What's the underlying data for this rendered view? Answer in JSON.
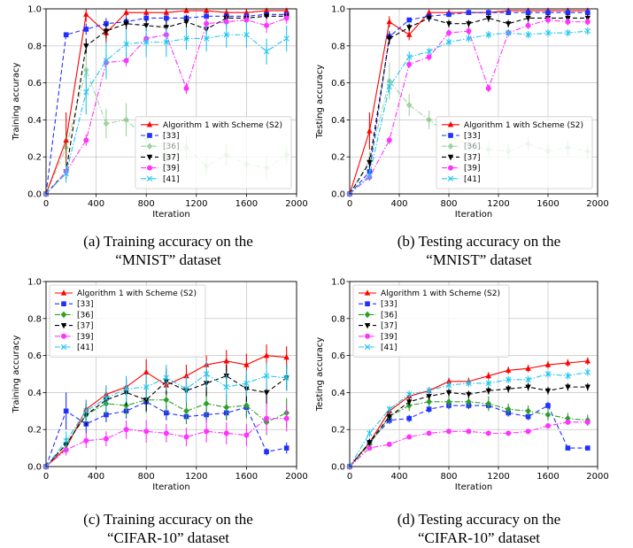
{
  "colors": {
    "alg1": "#ff0000",
    "r33": "#2030ff",
    "r36": "#2ca02c",
    "r37": "#000000",
    "r39": "#ff33ff",
    "r41": "#22c6ee"
  },
  "captions": [
    {
      "line1": "(a) Training accuracy on the",
      "line2": "“MNIST” dataset"
    },
    {
      "line1": "(b) Testing accuracy on the",
      "line2": "“MNIST” dataset"
    },
    {
      "line1": "(c) Training accuracy on the",
      "line2": "“CIFAR-10” dataset"
    },
    {
      "line1": "(d) Testing accuracy on the",
      "line2": "“CIFAR-10” dataset"
    }
  ],
  "chart_data": [
    {
      "type": "line",
      "title": "",
      "xlabel": "Iteration",
      "ylabel": "Training accuracy",
      "xlim": [
        0,
        2000
      ],
      "ylim": [
        0,
        1.0
      ],
      "xticks": [
        "0",
        "400",
        "800",
        "1200",
        "1600",
        "2000"
      ],
      "yticks": [
        "0.0",
        "0.2",
        "0.4",
        "0.6",
        "0.8",
        "1.0"
      ],
      "grid": true,
      "legend": "lower-right",
      "x": [
        0,
        160,
        320,
        480,
        640,
        800,
        960,
        1120,
        1280,
        1440,
        1600,
        1760,
        1920
      ],
      "series": [
        {
          "name": "Algorithm 1 with Scheme (S2)",
          "marker": "triangle-up",
          "dash": "solid",
          "values": [
            0,
            0.29,
            0.97,
            0.87,
            0.98,
            0.98,
            0.98,
            0.99,
            0.99,
            0.98,
            0.98,
            0.99,
            0.99
          ],
          "errors": [
            0,
            0.15,
            0.04,
            0.06,
            0.02,
            0.02,
            0.02,
            0.01,
            0.01,
            0.02,
            0.02,
            0.01,
            0.01
          ]
        },
        {
          "name": "[33]",
          "marker": "square",
          "dash": "dash",
          "values": [
            0,
            0.86,
            0.89,
            0.92,
            0.93,
            0.95,
            0.95,
            0.95,
            0.96,
            0.96,
            0.96,
            0.97,
            0.97
          ],
          "errors": [
            0,
            0.01,
            0.03,
            0.03,
            0.03,
            0.02,
            0.02,
            0.02,
            0.02,
            0.02,
            0.02,
            0.01,
            0.01
          ]
        },
        {
          "name": "[36]",
          "marker": "diamond",
          "dash": "dashdot",
          "faded": true,
          "values": [
            0,
            0.25,
            0.67,
            0.38,
            0.4,
            0.3,
            0.2,
            0.25,
            0.15,
            0.21,
            0.16,
            0.14,
            0.21
          ],
          "errors": [
            0,
            0.1,
            0.15,
            0.08,
            0.09,
            0.07,
            0.06,
            0.07,
            0.05,
            0.06,
            0.05,
            0.06,
            0.05
          ]
        },
        {
          "name": "[37]",
          "marker": "triangle-down",
          "dash": "dash",
          "values": [
            0,
            0.12,
            0.8,
            0.88,
            0.92,
            0.91,
            0.9,
            0.93,
            0.89,
            0.95,
            0.95,
            0.96,
            0.96
          ],
          "errors": [
            0,
            0.04,
            0.04,
            0.04,
            0.03,
            0.03,
            0.04,
            0.03,
            0.03,
            0.02,
            0.02,
            0.02,
            0.02
          ]
        },
        {
          "name": "[39]",
          "marker": "circle",
          "dash": "dashdot",
          "values": [
            0,
            0.12,
            0.29,
            0.71,
            0.72,
            0.84,
            0.86,
            0.57,
            0.92,
            0.93,
            0.94,
            0.91,
            0.95
          ],
          "errors": [
            0,
            0.03,
            0.03,
            0.04,
            0.03,
            0.03,
            0.04,
            0.03,
            0.03,
            0.03,
            0.03,
            0.04,
            0.03
          ]
        },
        {
          "name": "[41]",
          "marker": "x",
          "dash": "dashdot",
          "values": [
            0,
            0.11,
            0.55,
            0.72,
            0.81,
            0.82,
            0.82,
            0.84,
            0.84,
            0.86,
            0.86,
            0.77,
            0.84
          ],
          "errors": [
            0,
            0.05,
            0.12,
            0.1,
            0.08,
            0.08,
            0.08,
            0.06,
            0.07,
            0.07,
            0.07,
            0.07,
            0.07
          ]
        }
      ]
    },
    {
      "type": "line",
      "title": "",
      "xlabel": "Iteration",
      "ylabel": "Testing accuracy",
      "xlim": [
        0,
        2000
      ],
      "ylim": [
        0,
        1.0
      ],
      "xticks": [
        "0",
        "400",
        "800",
        "1200",
        "1600",
        "2000"
      ],
      "yticks": [
        "0.0",
        "0.2",
        "0.4",
        "0.6",
        "0.8",
        "1.0"
      ],
      "grid": true,
      "legend": "lower-right",
      "x": [
        0,
        160,
        320,
        480,
        640,
        800,
        960,
        1120,
        1280,
        1440,
        1600,
        1760,
        1920
      ],
      "series": [
        {
          "name": "Algorithm 1 with Scheme (S2)",
          "marker": "triangle-up",
          "dash": "solid",
          "values": [
            0,
            0.34,
            0.93,
            0.86,
            0.98,
            0.98,
            0.98,
            0.98,
            0.99,
            0.99,
            0.99,
            0.99,
            0.99
          ],
          "errors": [
            0,
            0.1,
            0.03,
            0.03,
            0.01,
            0.01,
            0.01,
            0.01,
            0.01,
            0.01,
            0.01,
            0.01,
            0.01
          ]
        },
        {
          "name": "[33]",
          "marker": "square",
          "dash": "dash",
          "values": [
            0,
            0.12,
            0.85,
            0.94,
            0.96,
            0.97,
            0.98,
            0.98,
            0.98,
            0.98,
            0.98,
            0.98,
            0.98
          ],
          "errors": [
            0,
            0.02,
            0.03,
            0.01,
            0.01,
            0.01,
            0.01,
            0.01,
            0.01,
            0.01,
            0.01,
            0.01,
            0.01
          ]
        },
        {
          "name": "[36]",
          "marker": "diamond",
          "dash": "dashdot",
          "faded": true,
          "values": [
            0,
            0.18,
            0.61,
            0.48,
            0.4,
            0.32,
            0.26,
            0.24,
            0.23,
            0.27,
            0.23,
            0.25,
            0.23
          ],
          "errors": [
            0,
            0.05,
            0.1,
            0.06,
            0.05,
            0.05,
            0.04,
            0.04,
            0.04,
            0.04,
            0.04,
            0.04,
            0.04
          ]
        },
        {
          "name": "[37]",
          "marker": "triangle-down",
          "dash": "dash",
          "values": [
            0,
            0.17,
            0.84,
            0.9,
            0.95,
            0.92,
            0.92,
            0.95,
            0.92,
            0.95,
            0.95,
            0.95,
            0.95
          ],
          "errors": [
            0,
            0.03,
            0.03,
            0.02,
            0.02,
            0.02,
            0.02,
            0.02,
            0.02,
            0.02,
            0.02,
            0.02,
            0.02
          ]
        },
        {
          "name": "[39]",
          "marker": "circle",
          "dash": "dashdot",
          "values": [
            0,
            0.09,
            0.29,
            0.7,
            0.74,
            0.87,
            0.88,
            0.57,
            0.87,
            0.91,
            0.94,
            0.93,
            0.93
          ],
          "errors": [
            0,
            0.02,
            0.02,
            0.02,
            0.02,
            0.02,
            0.02,
            0.02,
            0.02,
            0.02,
            0.02,
            0.02,
            0.02
          ]
        },
        {
          "name": "[41]",
          "marker": "x",
          "dash": "dashdot",
          "values": [
            0,
            0.1,
            0.58,
            0.74,
            0.77,
            0.82,
            0.84,
            0.86,
            0.87,
            0.86,
            0.87,
            0.87,
            0.88
          ],
          "errors": [
            0,
            0.03,
            0.04,
            0.03,
            0.02,
            0.02,
            0.02,
            0.02,
            0.02,
            0.02,
            0.02,
            0.02,
            0.02
          ]
        }
      ]
    },
    {
      "type": "line",
      "title": "",
      "xlabel": "Iteration",
      "ylabel": "Training accuracy",
      "xlim": [
        0,
        2000
      ],
      "ylim": [
        0,
        1.0
      ],
      "xticks": [
        "0",
        "400",
        "800",
        "1200",
        "1600",
        "2000"
      ],
      "yticks": [
        "0.0",
        "0.2",
        "0.4",
        "0.6",
        "0.8",
        "1.0"
      ],
      "grid": true,
      "legend": "upper-left",
      "x": [
        0,
        160,
        320,
        480,
        640,
        800,
        960,
        1120,
        1280,
        1440,
        1600,
        1760,
        1920
      ],
      "series": [
        {
          "name": "Algorithm 1 with Scheme (S2)",
          "marker": "triangle-up",
          "dash": "solid",
          "values": [
            0,
            0.1,
            0.31,
            0.39,
            0.43,
            0.51,
            0.44,
            0.49,
            0.55,
            0.57,
            0.55,
            0.6,
            0.59
          ],
          "errors": [
            0,
            0.03,
            0.05,
            0.05,
            0.05,
            0.07,
            0.06,
            0.06,
            0.05,
            0.06,
            0.06,
            0.06,
            0.06
          ]
        },
        {
          "name": "[33]",
          "marker": "square",
          "dash": "dash",
          "values": [
            0,
            0.3,
            0.23,
            0.28,
            0.3,
            0.35,
            0.29,
            0.27,
            0.28,
            0.29,
            0.32,
            0.08,
            0.1
          ],
          "errors": [
            0,
            0.1,
            0.05,
            0.04,
            0.04,
            0.05,
            0.04,
            0.04,
            0.04,
            0.04,
            0.05,
            0.02,
            0.03
          ]
        },
        {
          "name": "[36]",
          "marker": "diamond",
          "dash": "dashdot",
          "values": [
            0,
            0.12,
            0.28,
            0.34,
            0.33,
            0.36,
            0.36,
            0.3,
            0.34,
            0.32,
            0.33,
            0.24,
            0.29
          ],
          "errors": [
            0,
            0.04,
            0.06,
            0.06,
            0.06,
            0.07,
            0.07,
            0.07,
            0.07,
            0.07,
            0.07,
            0.07,
            0.08
          ]
        },
        {
          "name": "[37]",
          "marker": "triangle-down",
          "dash": "dash",
          "values": [
            0,
            0.12,
            0.28,
            0.36,
            0.4,
            0.36,
            0.46,
            0.41,
            0.45,
            0.49,
            0.42,
            0.4,
            0.48
          ],
          "errors": [
            0,
            0.04,
            0.06,
            0.06,
            0.07,
            0.06,
            0.07,
            0.06,
            0.07,
            0.06,
            0.07,
            0.08,
            0.07
          ]
        },
        {
          "name": "[39]",
          "marker": "circle",
          "dash": "dashdot",
          "values": [
            0,
            0.09,
            0.14,
            0.15,
            0.2,
            0.19,
            0.18,
            0.16,
            0.19,
            0.18,
            0.17,
            0.26,
            0.26
          ],
          "errors": [
            0,
            0.03,
            0.04,
            0.04,
            0.05,
            0.06,
            0.05,
            0.05,
            0.06,
            0.06,
            0.06,
            0.08,
            0.07
          ]
        },
        {
          "name": "[41]",
          "marker": "x",
          "dash": "dashdot",
          "values": [
            0,
            0.14,
            0.3,
            0.37,
            0.42,
            0.43,
            0.48,
            0.42,
            0.5,
            0.43,
            0.45,
            0.49,
            0.48
          ],
          "errors": [
            0,
            0.05,
            0.06,
            0.07,
            0.07,
            0.07,
            0.07,
            0.07,
            0.07,
            0.07,
            0.07,
            0.07,
            0.07
          ]
        }
      ]
    },
    {
      "type": "line",
      "title": "",
      "xlabel": "Iteration",
      "ylabel": "Testing accuracy",
      "xlim": [
        0,
        2000
      ],
      "ylim": [
        0,
        1.0
      ],
      "xticks": [
        "0",
        "400",
        "800",
        "1200",
        "1600",
        "2000"
      ],
      "yticks": [
        "0.0",
        "0.2",
        "0.4",
        "0.6",
        "0.8",
        "1.0"
      ],
      "grid": true,
      "legend": "upper-left",
      "x": [
        0,
        160,
        320,
        480,
        640,
        800,
        960,
        1120,
        1280,
        1440,
        1600,
        1760,
        1920
      ],
      "series": [
        {
          "name": "Algorithm 1 with Scheme (S2)",
          "marker": "triangle-up",
          "dash": "solid",
          "values": [
            0,
            0.13,
            0.3,
            0.38,
            0.41,
            0.46,
            0.46,
            0.49,
            0.52,
            0.53,
            0.55,
            0.56,
            0.57
          ],
          "errors": [
            0,
            0.02,
            0.02,
            0.02,
            0.02,
            0.02,
            0.02,
            0.02,
            0.02,
            0.02,
            0.02,
            0.02,
            0.02
          ]
        },
        {
          "name": "[33]",
          "marker": "square",
          "dash": "dash",
          "values": [
            0,
            0.13,
            0.25,
            0.26,
            0.31,
            0.33,
            0.33,
            0.33,
            0.29,
            0.27,
            0.33,
            0.1,
            0.1
          ],
          "errors": [
            0,
            0.02,
            0.02,
            0.02,
            0.02,
            0.02,
            0.02,
            0.02,
            0.02,
            0.02,
            0.02,
            0.01,
            0.01
          ]
        },
        {
          "name": "[36]",
          "marker": "diamond",
          "dash": "dashdot",
          "values": [
            0,
            0.12,
            0.27,
            0.33,
            0.35,
            0.35,
            0.35,
            0.34,
            0.31,
            0.3,
            0.28,
            0.26,
            0.25
          ],
          "errors": [
            0,
            0.02,
            0.03,
            0.03,
            0.03,
            0.03,
            0.03,
            0.04,
            0.03,
            0.03,
            0.03,
            0.03,
            0.03
          ]
        },
        {
          "name": "[37]",
          "marker": "triangle-down",
          "dash": "dash",
          "values": [
            0,
            0.13,
            0.27,
            0.35,
            0.38,
            0.4,
            0.39,
            0.41,
            0.42,
            0.43,
            0.41,
            0.43,
            0.43
          ],
          "errors": [
            0,
            0.02,
            0.02,
            0.02,
            0.02,
            0.02,
            0.02,
            0.02,
            0.02,
            0.02,
            0.02,
            0.02,
            0.02
          ]
        },
        {
          "name": "[39]",
          "marker": "circle",
          "dash": "dashdot",
          "values": [
            0,
            0.1,
            0.12,
            0.16,
            0.18,
            0.19,
            0.19,
            0.18,
            0.18,
            0.19,
            0.22,
            0.24,
            0.24
          ],
          "errors": [
            0,
            0.01,
            0.01,
            0.01,
            0.01,
            0.01,
            0.01,
            0.01,
            0.01,
            0.01,
            0.01,
            0.01,
            0.01
          ]
        },
        {
          "name": "[41]",
          "marker": "x",
          "dash": "dashdot",
          "values": [
            0,
            0.18,
            0.31,
            0.39,
            0.41,
            0.44,
            0.45,
            0.45,
            0.47,
            0.47,
            0.5,
            0.49,
            0.51
          ],
          "errors": [
            0,
            0.02,
            0.02,
            0.02,
            0.02,
            0.02,
            0.02,
            0.02,
            0.02,
            0.02,
            0.02,
            0.02,
            0.02
          ]
        }
      ]
    }
  ]
}
